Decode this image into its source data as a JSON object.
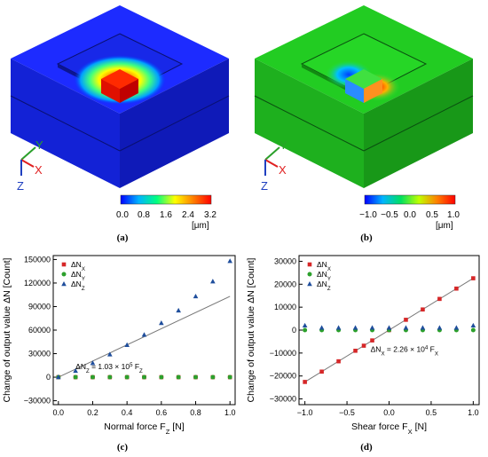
{
  "panels": {
    "a": {
      "caption": "(a)",
      "axes": {
        "x": "X",
        "y": "Y",
        "z": "Z"
      },
      "colorbar": {
        "ticks": [
          "0.0",
          "0.8",
          "1.6",
          "2.4",
          "3.2"
        ],
        "unit": "[μm]",
        "colors": [
          "#0000ff",
          "#00b4ff",
          "#00ff80",
          "#ffff00",
          "#ff8000",
          "#ff0000"
        ]
      }
    },
    "b": {
      "caption": "(b)",
      "axes": {
        "x": "X",
        "y": "Y",
        "z": "Z"
      },
      "colorbar": {
        "ticks": [
          "−1.0",
          "−0.5",
          "0.0",
          "0.5",
          "1.0"
        ],
        "unit": "[μm]",
        "colors": [
          "#0000ff",
          "#00b4ff",
          "#00e060",
          "#c0ff00",
          "#ff8000",
          "#ff0000"
        ]
      }
    },
    "c": {
      "caption": "(c)"
    },
    "d": {
      "caption": "(d)"
    }
  },
  "chart_data": [
    {
      "type": "scatter",
      "xlabel": "Normal force F_Z [N]",
      "ylabel": "Change of output value ΔN [Count]",
      "xlim": [
        -0.03,
        1.03
      ],
      "ylim": [
        -35000,
        155000
      ],
      "xticks": [
        "0.0",
        "0.2",
        "0.4",
        "0.6",
        "0.8",
        "1.0"
      ],
      "yticks": [
        "−30000",
        "0",
        "30000",
        "60000",
        "90000",
        "120000",
        "150000"
      ],
      "grid": false,
      "legend_position": "top-left",
      "series": [
        {
          "name": "ΔN_X",
          "color": "#d62728",
          "marker": "square",
          "x": [
            0,
            0.1,
            0.2,
            0.3,
            0.4,
            0.5,
            0.6,
            0.7,
            0.8,
            0.9,
            1.0
          ],
          "y": [
            0,
            0,
            0,
            0,
            0,
            0,
            0,
            0,
            0,
            0,
            0
          ]
        },
        {
          "name": "ΔN_Y",
          "color": "#2ca02c",
          "marker": "circle",
          "x": [
            0,
            0.1,
            0.2,
            0.3,
            0.4,
            0.5,
            0.6,
            0.7,
            0.8,
            0.9,
            1.0
          ],
          "y": [
            0,
            0,
            0,
            0,
            0,
            0,
            0,
            0,
            0,
            0,
            0
          ]
        },
        {
          "name": "ΔN_Z",
          "color": "#1f4e9c",
          "marker": "triangle",
          "x": [
            0,
            0.1,
            0.2,
            0.3,
            0.4,
            0.5,
            0.6,
            0.7,
            0.8,
            0.9,
            1.0
          ],
          "y": [
            0,
            8000,
            18000,
            29000,
            41000,
            54000,
            69000,
            85000,
            103000,
            122000,
            148000
          ]
        }
      ],
      "fit_line": {
        "x": [
          0,
          1.0
        ],
        "y": [
          0,
          103000
        ],
        "color": "#777777"
      },
      "annotation": "ΔN_Z = 1.03 × 10^5 F_Z"
    },
    {
      "type": "scatter",
      "xlabel": "Shear force F_X [N]",
      "ylabel": "Change of output value ΔN [Count]",
      "xlim": [
        -1.07,
        1.07
      ],
      "ylim": [
        -32500,
        32500
      ],
      "xticks": [
        "−1.0",
        "−0.5",
        "0.0",
        "0.5",
        "1.0"
      ],
      "yticks": [
        "−30000",
        "−20000",
        "−10000",
        "0",
        "10000",
        "20000",
        "30000"
      ],
      "grid": false,
      "legend_position": "top-left",
      "series": [
        {
          "name": "ΔN_X",
          "color": "#d62728",
          "marker": "square",
          "x": [
            -1.0,
            -0.8,
            -0.6,
            -0.4,
            -0.3,
            -0.2,
            0,
            0.2,
            0.4,
            0.6,
            0.8,
            1.0
          ],
          "y": [
            -22600,
            -18100,
            -13600,
            -9000,
            -6800,
            -4500,
            0,
            4500,
            9000,
            13600,
            18100,
            22600
          ]
        },
        {
          "name": "ΔN_Y",
          "color": "#2ca02c",
          "marker": "circle",
          "x": [
            -1.0,
            -0.8,
            -0.6,
            -0.4,
            -0.2,
            0,
            0.2,
            0.4,
            0.6,
            0.8,
            1.0
          ],
          "y": [
            0,
            0,
            0,
            0,
            0,
            0,
            0,
            0,
            0,
            0,
            0
          ]
        },
        {
          "name": "ΔN_Z",
          "color": "#1f4e9c",
          "marker": "triangle",
          "x": [
            -1.0,
            -0.8,
            -0.6,
            -0.4,
            -0.2,
            0,
            0.2,
            0.4,
            0.6,
            0.8,
            1.0
          ],
          "y": [
            2000,
            1000,
            1000,
            1000,
            1000,
            1000,
            1000,
            1000,
            1000,
            1000,
            2000
          ]
        }
      ],
      "fit_line": {
        "x": [
          -1.0,
          1.0
        ],
        "y": [
          -22600,
          22600
        ],
        "color": "#777777"
      },
      "annotation": "ΔN_X = 2.26 × 10^4 F_X"
    }
  ]
}
